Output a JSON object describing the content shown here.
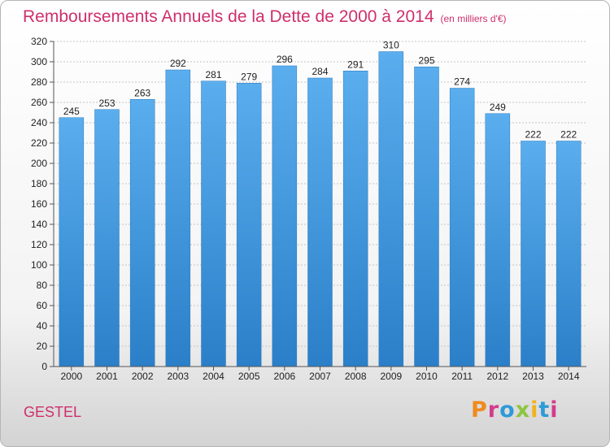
{
  "title": "Remboursements Annuels de la Dette de 2000 à 2014",
  "unit": "(en milliers d'€)",
  "commune": "GESTEL",
  "logo": {
    "letters": [
      "P",
      "r",
      "o",
      "x",
      "i",
      "t",
      "i"
    ],
    "colors": [
      "#f08a1e",
      "#d23c8c",
      "#2f9ad8",
      "#8cc63f",
      "#f2b21c",
      "#2f9ad8",
      "#d23c8c"
    ]
  },
  "chart_data": {
    "type": "bar",
    "categories": [
      "2000",
      "2001",
      "2002",
      "2003",
      "2004",
      "2005",
      "2006",
      "2007",
      "2008",
      "2009",
      "2010",
      "2011",
      "2012",
      "2013",
      "2014"
    ],
    "values": [
      245,
      253,
      263,
      292,
      281,
      279,
      296,
      284,
      291,
      310,
      295,
      274,
      249,
      222,
      222
    ],
    "ylim": [
      0,
      320
    ],
    "yticks": [
      0,
      20,
      40,
      60,
      80,
      100,
      120,
      140,
      160,
      180,
      200,
      220,
      240,
      260,
      280,
      300,
      320
    ],
    "grid": true,
    "bar_color": "#3a8fdc"
  }
}
